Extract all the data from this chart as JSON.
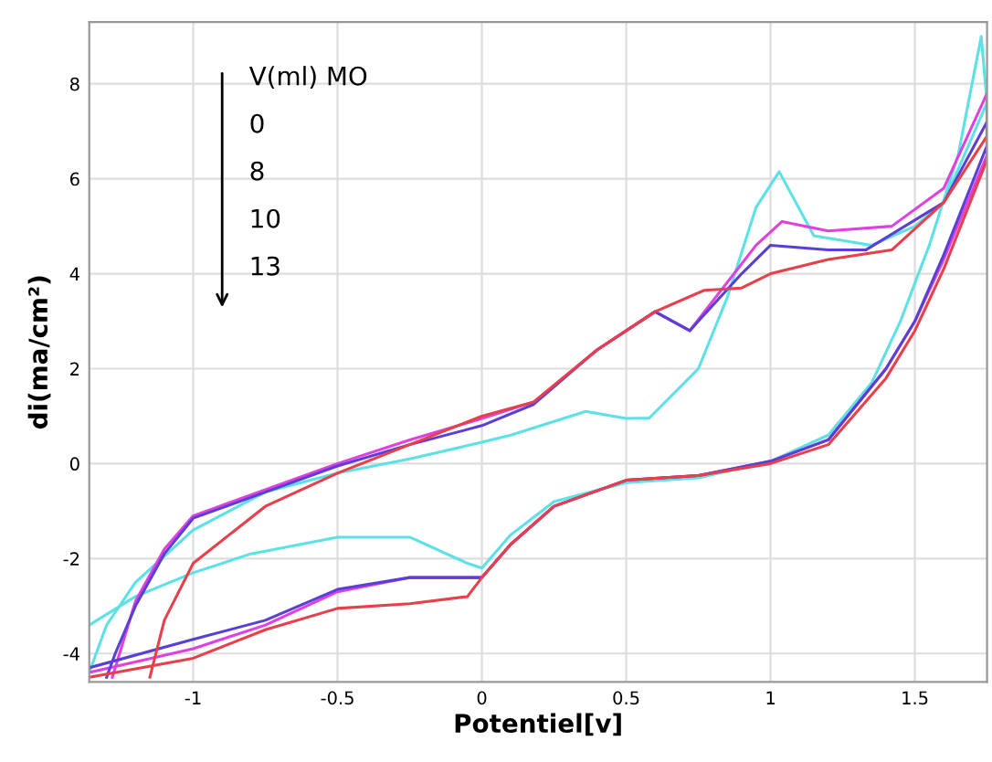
{
  "chart_data": {
    "type": "line",
    "xlabel": "Potentiel[v]",
    "ylabel": "di(ma/cm²)",
    "xlim": [
      -1.36,
      1.75
    ],
    "ylim": [
      -4.6,
      9.3
    ],
    "xticks": [
      -1,
      -0.5,
      0,
      0.5,
      1,
      1.5
    ],
    "yticks": [
      -4,
      -2,
      0,
      2,
      4,
      6,
      8
    ],
    "grid": true,
    "line_style": "solid",
    "marker": "none",
    "annotations": [
      "V(ml) MO",
      "0",
      "8",
      "10",
      "13"
    ],
    "series": [
      {
        "color": "#5ce1e6",
        "x": [
          -1.36,
          -1.2,
          -1.0,
          -0.8,
          -0.5,
          -0.25,
          -0.05,
          0,
          0.1,
          0.25,
          0.5,
          0.75,
          1.0,
          1.2,
          1.35,
          1.45,
          1.55,
          1.65,
          1.73,
          1.75,
          1.6,
          1.5,
          1.35,
          1.15,
          1.03,
          0.95,
          0.85,
          0.75,
          0.58,
          0.5,
          0.36,
          0.1,
          0,
          -0.25,
          -0.5,
          -0.75,
          -1.0,
          -1.2,
          -1.3,
          -1.36
        ],
        "values": [
          -3.4,
          -2.8,
          -2.3,
          -1.9,
          -1.55,
          -1.55,
          -2.1,
          -2.2,
          -1.5,
          -0.8,
          -0.4,
          -0.3,
          0.05,
          0.6,
          1.7,
          3.0,
          4.6,
          6.5,
          9.0,
          7.6,
          5.5,
          5.0,
          4.6,
          4.8,
          6.15,
          5.4,
          3.5,
          2.0,
          0.96,
          0.95,
          1.1,
          0.6,
          0.45,
          0.1,
          -0.2,
          -0.6,
          -1.4,
          -2.5,
          -3.4,
          -4.4
        ]
      },
      {
        "color": "#e040e0",
        "x": [
          -1.36,
          -1.0,
          -0.75,
          -0.5,
          -0.25,
          0,
          0.1,
          0.25,
          0.5,
          0.75,
          1.0,
          1.2,
          1.4,
          1.5,
          1.6,
          1.75,
          1.75,
          1.6,
          1.42,
          1.2,
          1.04,
          0.95,
          0.72,
          0.6,
          0.4,
          0.18,
          0,
          -0.25,
          -0.5,
          -0.75,
          -1.0,
          -1.1,
          -1.2,
          -1.25,
          -1.28
        ],
        "values": [
          -4.4,
          -3.9,
          -3.4,
          -2.7,
          -2.4,
          -2.4,
          -1.7,
          -0.9,
          -0.35,
          -0.25,
          0.05,
          0.5,
          2.0,
          3.0,
          4.3,
          6.5,
          7.8,
          5.8,
          5.0,
          4.9,
          5.1,
          4.6,
          2.8,
          3.2,
          2.4,
          1.3,
          0.95,
          0.5,
          0.0,
          -0.55,
          -1.1,
          -1.8,
          -2.9,
          -3.9,
          -4.5
        ]
      },
      {
        "color": "#5a3fd6",
        "x": [
          -1.36,
          -1.0,
          -0.75,
          -0.5,
          -0.25,
          0,
          0.1,
          0.25,
          0.5,
          0.75,
          1.0,
          1.2,
          1.4,
          1.5,
          1.6,
          1.75,
          1.75,
          1.6,
          1.33,
          1.2,
          1.0,
          0.9,
          0.72,
          0.6,
          0.4,
          0.18,
          0,
          -0.25,
          -0.5,
          -0.75,
          -1.0,
          -1.1,
          -1.2,
          -1.27,
          -1.3
        ],
        "values": [
          -4.3,
          -3.7,
          -3.3,
          -2.65,
          -2.4,
          -2.4,
          -1.7,
          -0.9,
          -0.35,
          -0.25,
          0.05,
          0.5,
          2.0,
          3.0,
          4.4,
          6.7,
          7.2,
          5.5,
          4.5,
          4.5,
          4.6,
          4.0,
          2.8,
          3.2,
          2.4,
          1.25,
          0.8,
          0.4,
          -0.05,
          -0.6,
          -1.15,
          -1.9,
          -3.0,
          -4.0,
          -4.5
        ]
      },
      {
        "color": "#e8404a",
        "x": [
          -1.36,
          -1.0,
          -0.75,
          -0.5,
          -0.25,
          -0.05,
          0,
          0.1,
          0.25,
          0.5,
          0.75,
          1.0,
          1.2,
          1.4,
          1.5,
          1.6,
          1.75,
          1.75,
          1.6,
          1.42,
          1.2,
          1.0,
          0.9,
          0.77,
          0.6,
          0.4,
          0.18,
          0,
          -0.25,
          -0.5,
          -0.75,
          -1.0,
          -1.1,
          -1.15
        ],
        "values": [
          -4.5,
          -4.1,
          -3.5,
          -3.05,
          -2.95,
          -2.8,
          -2.4,
          -1.7,
          -0.9,
          -0.35,
          -0.25,
          0.0,
          0.4,
          1.8,
          2.8,
          4.1,
          6.4,
          6.9,
          5.5,
          4.5,
          4.3,
          4.0,
          3.7,
          3.65,
          3.2,
          2.4,
          1.3,
          1.0,
          0.4,
          -0.2,
          -0.9,
          -2.1,
          -3.3,
          -4.5
        ]
      }
    ]
  }
}
